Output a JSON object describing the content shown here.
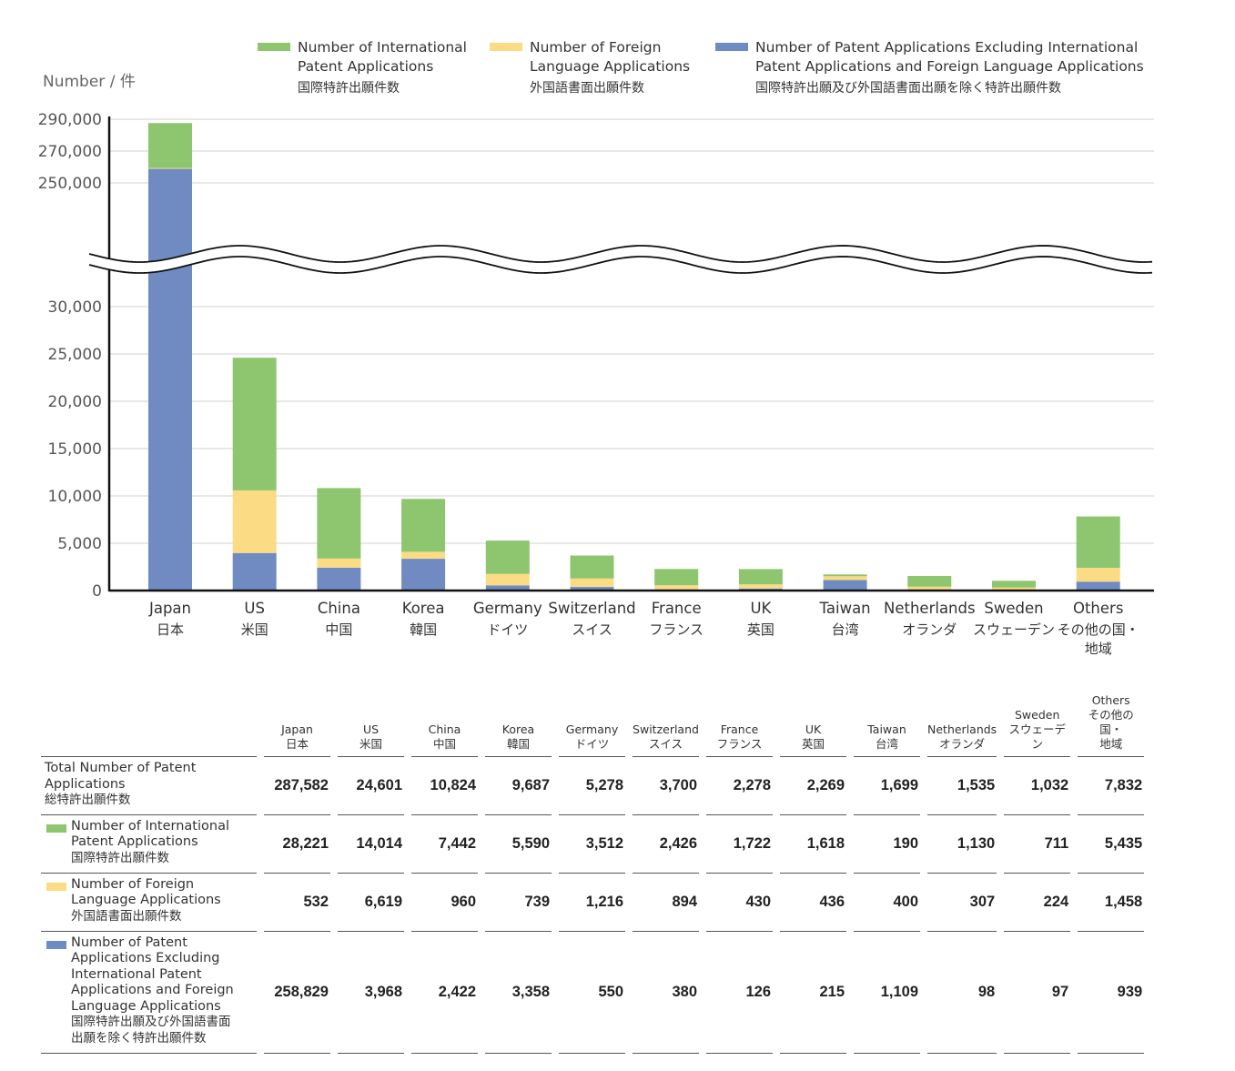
{
  "chart_data": {
    "type": "bar",
    "stacked": true,
    "ylabel": "Number / 件",
    "y_break": [
      30000,
      250000
    ],
    "ylim_lower": [
      0,
      30000
    ],
    "ylim_upper": [
      250000,
      290000
    ],
    "yticks_lower": [
      "0",
      "5,000",
      "10,000",
      "15,000",
      "20,000",
      "25,000",
      "30,000"
    ],
    "yticks_upper": [
      "250,000",
      "270,000",
      "290,000"
    ],
    "grid": true,
    "legend_placement": "top",
    "categories": [
      {
        "en": "Japan",
        "jp": "日本"
      },
      {
        "en": "US",
        "jp": "米国"
      },
      {
        "en": "China",
        "jp": "中国"
      },
      {
        "en": "Korea",
        "jp": "韓国"
      },
      {
        "en": "Germany",
        "jp": "ドイツ"
      },
      {
        "en": "Switzerland",
        "jp": "スイス"
      },
      {
        "en": "France",
        "jp": "フランス"
      },
      {
        "en": "UK",
        "jp": "英国"
      },
      {
        "en": "Taiwan",
        "jp": "台湾"
      },
      {
        "en": "Netherlands",
        "jp": "オランダ"
      },
      {
        "en": "Sweden",
        "jp": "スウェーデン"
      },
      {
        "en": "Others",
        "jp": "その他の国・地域"
      }
    ],
    "series": [
      {
        "name": "Number of Patent Applications Excluding International Patent Applications and Foreign Language Applications",
        "name_lines": [
          "Number of Patent Applications Excluding International",
          "Patent Applications and Foreign Language Applications"
        ],
        "name_jp": "国際特許出願及び外国語書面出願を除く特許出願件数",
        "color": "#6f8bc2",
        "values": [
          258829,
          3968,
          2422,
          3358,
          550,
          380,
          126,
          215,
          1109,
          98,
          97,
          939
        ]
      },
      {
        "name": "Number of Foreign Language Applications",
        "name_lines": [
          "Number of Foreign",
          "Language Applications"
        ],
        "name_jp": "外国語書面出願件数",
        "color": "#fbdc84",
        "values": [
          532,
          6619,
          960,
          739,
          1216,
          894,
          430,
          436,
          400,
          307,
          224,
          1458
        ]
      },
      {
        "name": "Number of International Patent Applications",
        "name_lines": [
          "Number of International",
          "Patent Applications"
        ],
        "name_jp": "国際特許出願件数",
        "color": "#8ec56f",
        "values": [
          28221,
          14014,
          7442,
          5590,
          3512,
          2426,
          1722,
          1618,
          190,
          1130,
          711,
          5435
        ]
      }
    ]
  },
  "table": {
    "headers": [
      [
        "Japan",
        "日本"
      ],
      [
        "US",
        "米国"
      ],
      [
        "China",
        "中国"
      ],
      [
        "Korea",
        "韓国"
      ],
      [
        "Germany",
        "ドイツ"
      ],
      [
        "Switzerland",
        "スイス"
      ],
      [
        "France",
        "フランス"
      ],
      [
        "UK",
        "英国"
      ],
      [
        "Taiwan",
        "台湾"
      ],
      [
        "Netherlands",
        "オランダ"
      ],
      [
        "Sweden",
        "スウェーデン"
      ],
      [
        "Others",
        "その他の国・",
        "地域"
      ]
    ],
    "rows": [
      {
        "label": [
          "Total Number of Patent",
          "Applications"
        ],
        "label_jp": [
          "総特許出願件数"
        ],
        "color": "",
        "values": [
          "287,582",
          "24,601",
          "10,824",
          "9,687",
          "5,278",
          "3,700",
          "2,278",
          "2,269",
          "1,699",
          "1,535",
          "1,032",
          "7,832"
        ]
      },
      {
        "label": [
          "Number of International",
          "Patent Applications"
        ],
        "label_jp": [
          "国際特許出願件数"
        ],
        "color": "#8ec56f",
        "values": [
          "28,221",
          "14,014",
          "7,442",
          "5,590",
          "3,512",
          "2,426",
          "1,722",
          "1,618",
          "190",
          "1,130",
          "711",
          "5,435"
        ]
      },
      {
        "label": [
          "Number of Foreign",
          "Language Applications"
        ],
        "label_jp": [
          "外国語書面出願件数"
        ],
        "color": "#fbdc84",
        "values": [
          "532",
          "6,619",
          "960",
          "739",
          "1,216",
          "894",
          "430",
          "436",
          "400",
          "307",
          "224",
          "1,458"
        ]
      },
      {
        "label": [
          "Number of Patent",
          "Applications Excluding",
          "International Patent",
          "Applications and Foreign",
          "Language Applications"
        ],
        "label_jp": [
          "国際特許出願及び外国語書面",
          "出願を除く特許出願件数"
        ],
        "color": "#6f8bc2",
        "values": [
          "258,829",
          "3,968",
          "2,422",
          "3,358",
          "550",
          "380",
          "126",
          "215",
          "1,109",
          "98",
          "97",
          "939"
        ]
      }
    ]
  }
}
